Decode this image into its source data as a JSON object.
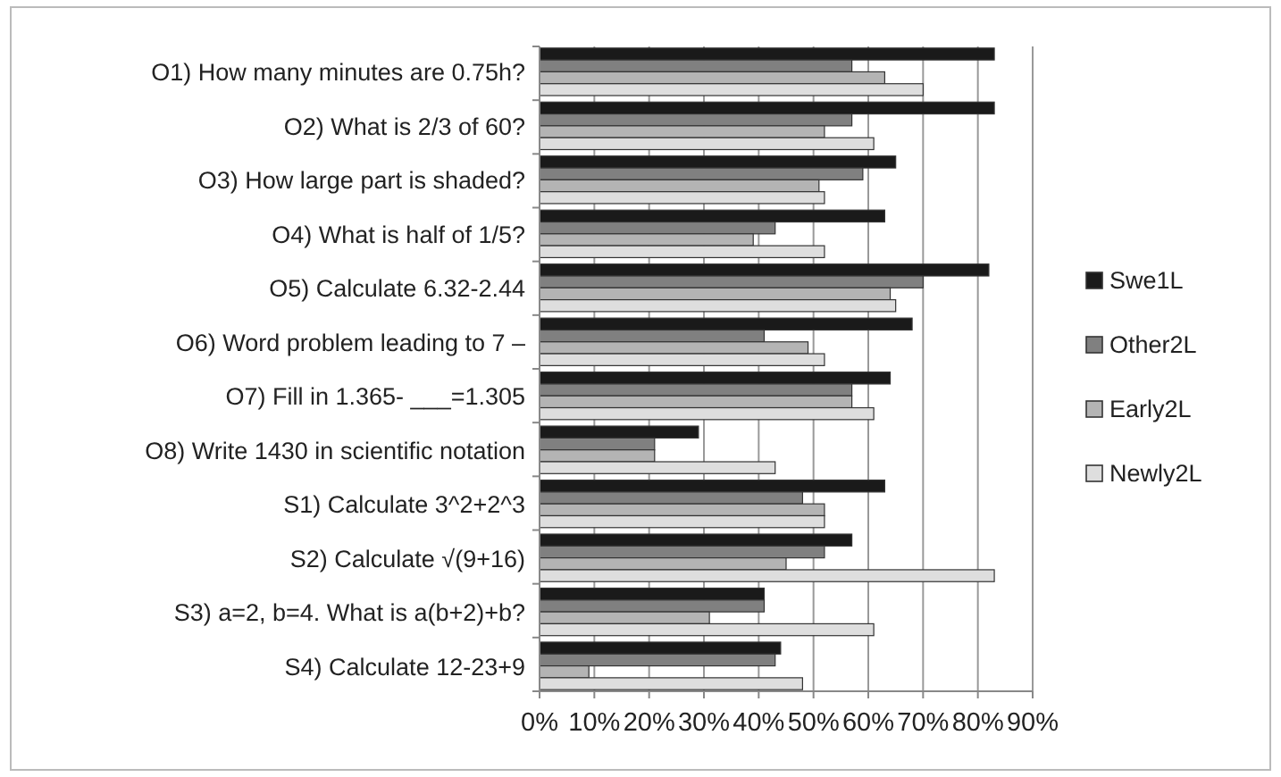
{
  "chart_data": {
    "type": "bar",
    "orientation": "horizontal",
    "categories": [
      "O1) How many minutes are 0.75h?",
      "O2) What is 2/3 of 60?",
      "O3) How large part is shaded?",
      "O4) What is half of 1/5?",
      "O5) Calculate 6.32-2.44",
      "O6) Word problem leading to 7 –",
      "O7) Fill in 1.365- ___=1.305",
      "O8) Write 1430 in scientific notation",
      "S1) Calculate 3^2+2^3",
      "S2) Calculate √(9+16)",
      "S3) a=2, b=4. What is a(b+2)+b?",
      "S4) Calculate 12-23+9"
    ],
    "series": [
      {
        "name": "Swe1L",
        "color": "#1a1a1a",
        "values": [
          83,
          83,
          65,
          63,
          82,
          68,
          64,
          29,
          63,
          57,
          41,
          44
        ]
      },
      {
        "name": "Other2L",
        "color": "#808080",
        "values": [
          57,
          57,
          59,
          43,
          70,
          41,
          57,
          21,
          48,
          52,
          41,
          43
        ]
      },
      {
        "name": "Early2L",
        "color": "#b4b4b4",
        "values": [
          63,
          52,
          51,
          39,
          64,
          49,
          57,
          21,
          52,
          45,
          31,
          9
        ]
      },
      {
        "name": "Newly2L",
        "color": "#dedede",
        "values": [
          70,
          61,
          52,
          52,
          65,
          52,
          61,
          43,
          52,
          83,
          61,
          48
        ]
      }
    ],
    "xlim": [
      0,
      90
    ],
    "xticks": [
      {
        "value": 0,
        "label": "0%"
      },
      {
        "value": 10,
        "label": "10%"
      },
      {
        "value": 20,
        "label": "20%"
      },
      {
        "value": 30,
        "label": "30%"
      },
      {
        "value": 40,
        "label": "40%"
      },
      {
        "value": 50,
        "label": "50%"
      },
      {
        "value": 60,
        "label": "60%"
      },
      {
        "value": 70,
        "label": "70%"
      },
      {
        "value": 80,
        "label": "80%"
      },
      {
        "value": 90,
        "label": "90%"
      }
    ],
    "grid": "x",
    "legend": "right"
  }
}
